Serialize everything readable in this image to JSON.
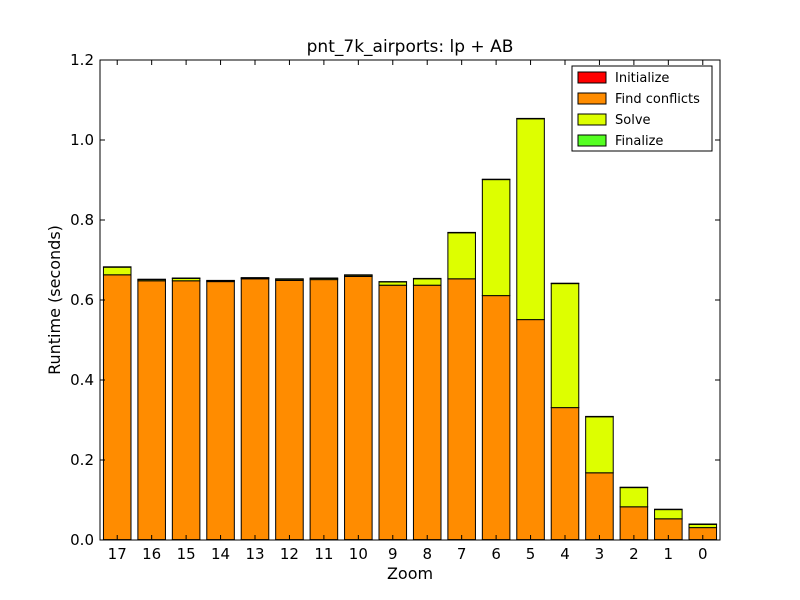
{
  "chart_data": {
    "type": "bar",
    "stacked": true,
    "title": "pnt_7k_airports: lp + AB",
    "xlabel": "Zoom",
    "ylabel": "Runtime (seconds)",
    "ylim": [
      0,
      1.2
    ],
    "yticks": [
      "0.0",
      "0.2",
      "0.4",
      "0.6",
      "0.8",
      "1.0",
      "1.2"
    ],
    "grid": false,
    "legend_position": "top-right",
    "categories": [
      "17",
      "16",
      "15",
      "14",
      "13",
      "12",
      "11",
      "10",
      "9",
      "8",
      "7",
      "6",
      "5",
      "4",
      "3",
      "2",
      "1",
      "0"
    ],
    "series": [
      {
        "name": "Initialize",
        "color": "#ff0000",
        "values": [
          0.001,
          0.001,
          0.001,
          0.001,
          0.001,
          0.001,
          0.001,
          0.001,
          0.001,
          0.001,
          0.001,
          0.001,
          0.001,
          0.001,
          0.001,
          0.001,
          0.001,
          0.001
        ]
      },
      {
        "name": "Find conflicts",
        "color": "#ff8c00",
        "values": [
          0.662,
          0.647,
          0.647,
          0.645,
          0.652,
          0.648,
          0.65,
          0.658,
          0.636,
          0.636,
          0.652,
          0.61,
          0.55,
          0.33,
          0.167,
          0.082,
          0.052,
          0.03
        ]
      },
      {
        "name": "Solve",
        "color": "#ddff00",
        "values": [
          0.019,
          0.003,
          0.006,
          0.002,
          0.002,
          0.003,
          0.003,
          0.003,
          0.008,
          0.016,
          0.115,
          0.29,
          0.502,
          0.31,
          0.14,
          0.048,
          0.023,
          0.008
        ]
      },
      {
        "name": "Finalize",
        "color": "#55ff22",
        "values": [
          0.001,
          0.001,
          0.001,
          0.001,
          0.001,
          0.001,
          0.001,
          0.001,
          0.001,
          0.001,
          0.001,
          0.001,
          0.001,
          0.001,
          0.001,
          0.001,
          0.001,
          0.001
        ]
      }
    ]
  }
}
